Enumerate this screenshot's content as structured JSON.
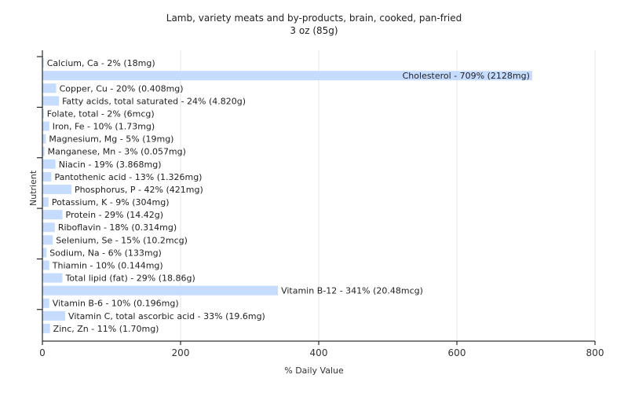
{
  "chart_data": {
    "type": "bar",
    "orientation": "horizontal",
    "title": "Lamb, variety meats and by-products, brain, cooked, pan-fried",
    "subtitle": "3 oz (85g)",
    "xlabel": "% Daily Value",
    "ylabel": "Nutrient",
    "xlim": [
      0,
      800
    ],
    "xticks": [
      0,
      200,
      400,
      600,
      800
    ],
    "grid": true,
    "bar_color": "#c6dcff",
    "categories": [
      "Calcium, Ca",
      "Cholesterol",
      "Copper, Cu",
      "Fatty acids, total saturated",
      "Folate, total",
      "Iron, Fe",
      "Magnesium, Mg",
      "Manganese, Mn",
      "Niacin",
      "Pantothenic acid",
      "Phosphorus, P",
      "Potassium, K",
      "Protein",
      "Riboflavin",
      "Selenium, Se",
      "Sodium, Na",
      "Thiamin",
      "Total lipid (fat)",
      "Vitamin B-12",
      "Vitamin B-6",
      "Vitamin C, total ascorbic acid",
      "Zinc, Zn"
    ],
    "values": [
      2,
      709,
      20,
      24,
      2,
      10,
      5,
      3,
      19,
      13,
      42,
      9,
      29,
      18,
      15,
      6,
      10,
      29,
      341,
      10,
      33,
      11
    ],
    "labels": [
      "Calcium, Ca - 2% (18mg)",
      "Cholesterol - 709% (2128mg)",
      "Copper, Cu - 20% (0.408mg)",
      "Fatty acids, total saturated - 24% (4.820g)",
      "Folate, total - 2% (6mcg)",
      "Iron, Fe - 10% (1.73mg)",
      "Magnesium, Mg - 5% (19mg)",
      "Manganese, Mn - 3% (0.057mg)",
      "Niacin - 19% (3.868mg)",
      "Pantothenic acid - 13% (1.326mg)",
      "Phosphorus, P - 42% (421mg)",
      "Potassium, K - 9% (304mg)",
      "Protein - 29% (14.42g)",
      "Riboflavin - 18% (0.314mg)",
      "Selenium, Se - 15% (10.2mcg)",
      "Sodium, Na - 6% (133mg)",
      "Thiamin - 10% (0.144mg)",
      "Total lipid (fat) - 29% (18.86g)",
      "Vitamin B-12 - 341% (20.48mcg)",
      "Vitamin B-6 - 10% (0.196mg)",
      "Vitamin C, total ascorbic acid - 33% (19.6mg)",
      "Zinc, Zn - 11% (1.70mg)"
    ]
  }
}
